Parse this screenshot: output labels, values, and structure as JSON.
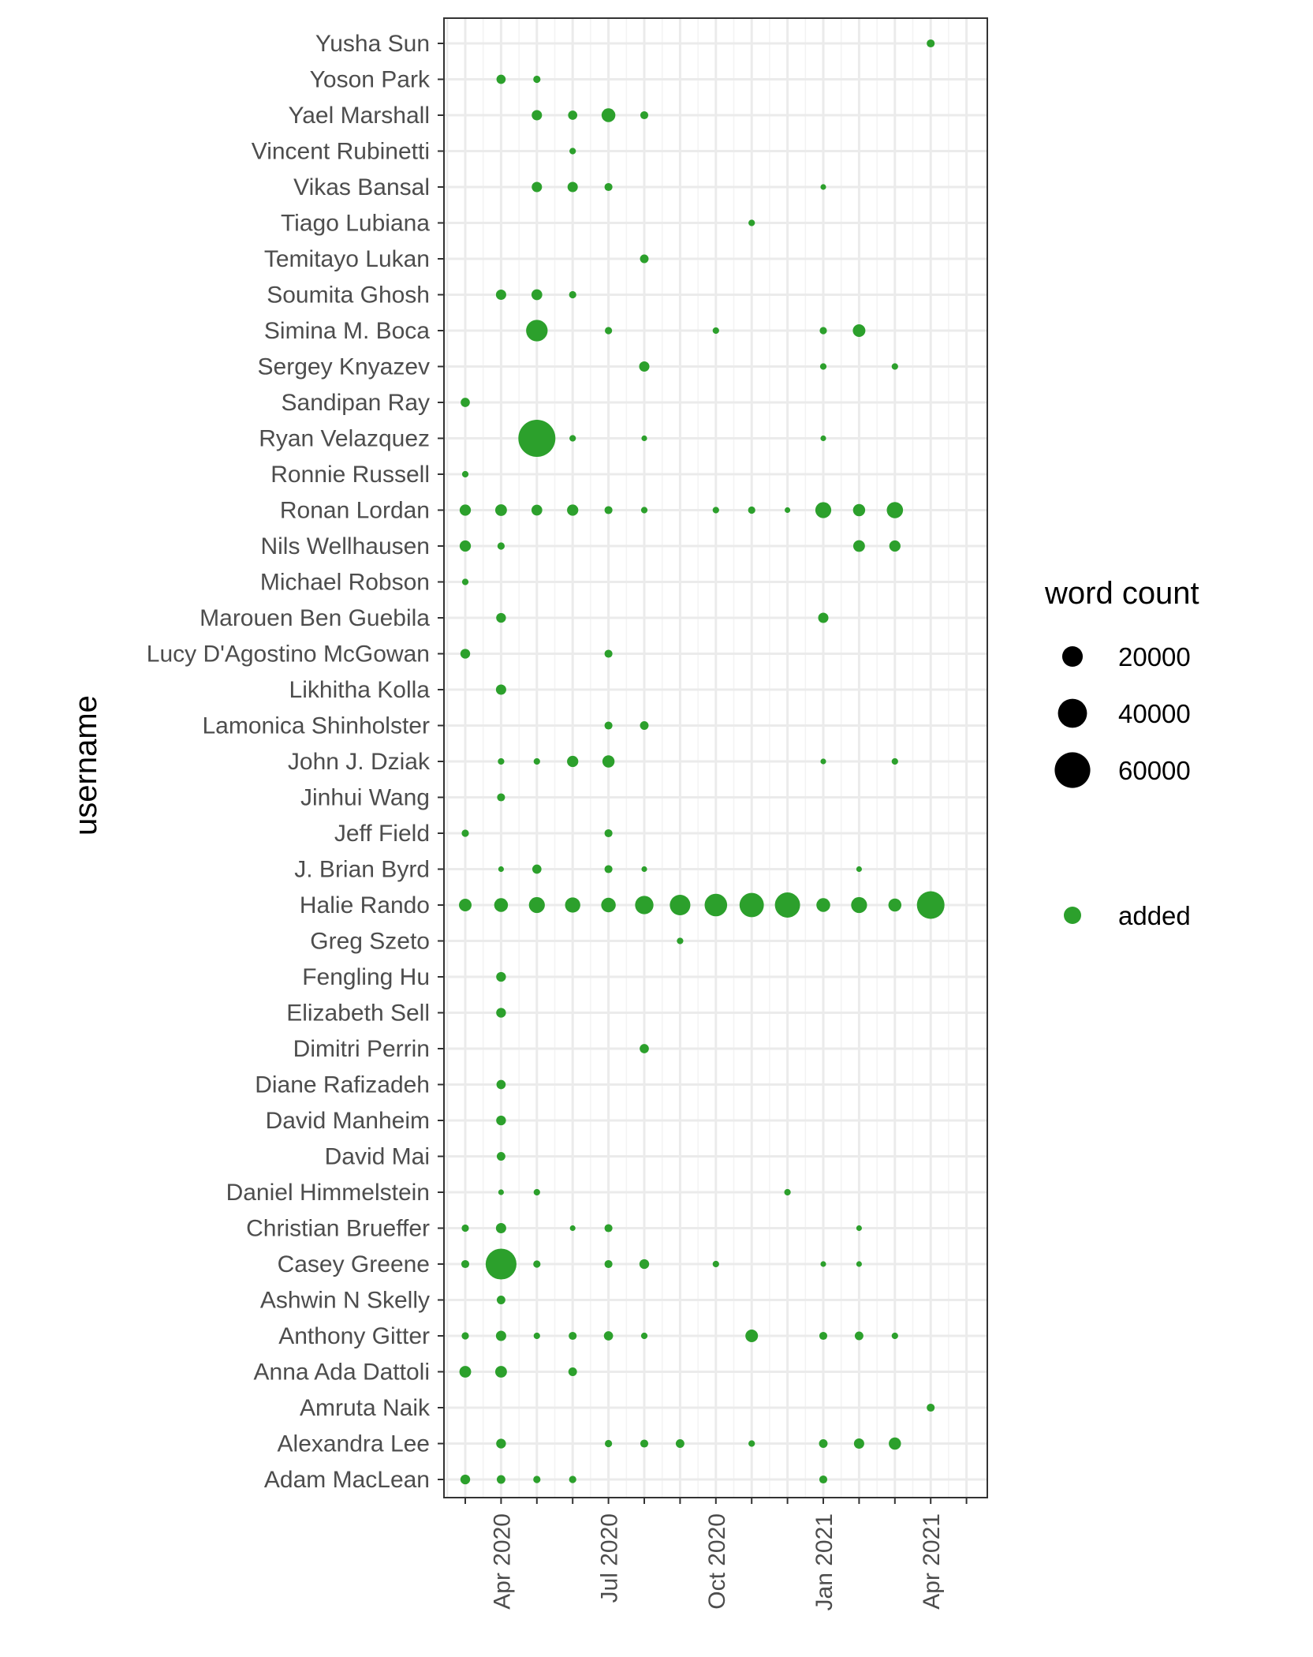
{
  "chart_data": {
    "type": "scatter",
    "xlabel": "",
    "ylabel": "username",
    "x_tick_labels": [
      "Apr 2020",
      "Jul 2020",
      "Oct 2020",
      "Jan 2021",
      "Apr 2021"
    ],
    "x_months": [
      "2020-03",
      "2020-04",
      "2020-05",
      "2020-06",
      "2020-07",
      "2020-08",
      "2020-09",
      "2020-10",
      "2020-11",
      "2020-12",
      "2021-01",
      "2021-02",
      "2021-03",
      "2021-04",
      "2021-05"
    ],
    "categories": [
      "Adam MacLean",
      "Alexandra Lee",
      "Amruta Naik",
      "Anna Ada Dattoli",
      "Anthony Gitter",
      "Ashwin N Skelly",
      "Casey Greene",
      "Christian Brueffer",
      "Daniel Himmelstein",
      "David Mai",
      "David Manheim",
      "Diane Rafizadeh",
      "Dimitri Perrin",
      "Elizabeth Sell",
      "Fengling Hu",
      "Greg Szeto",
      "Halie Rando",
      "J. Brian Byrd",
      "Jeff Field",
      "Jinhui Wang",
      "John J. Dziak",
      "Lamonica Shinholster",
      "Likhitha Kolla",
      "Lucy D'Agostino McGowan",
      "Marouen Ben Guebila",
      "Michael Robson",
      "Nils Wellhausen",
      "Ronan Lordan",
      "Ronnie Russell",
      "Ryan Velazquez",
      "Sandipan Ray",
      "Sergey Knyazev",
      "Simina M. Boca",
      "Soumita Ghosh",
      "Temitayo Lukan",
      "Tiago Lubiana",
      "Vikas Bansal",
      "Vincent Rubinetti",
      "Yael Marshall",
      "Yoson Park",
      "Yusha Sun"
    ],
    "size_legend": {
      "title": "word count",
      "values": [
        20000,
        40000,
        60000
      ],
      "labels": [
        "20000",
        "40000",
        "60000"
      ]
    },
    "color_legend": {
      "labels": [
        "added"
      ],
      "colors": [
        "#2ca02c"
      ]
    },
    "series": [
      {
        "name": "added",
        "color": "#2ca02c",
        "points": [
          {
            "user": "Yusha Sun",
            "month": "2021-04",
            "word_count": 3000
          },
          {
            "user": "Yoson Park",
            "month": "2020-04",
            "word_count": 4000
          },
          {
            "user": "Yoson Park",
            "month": "2020-05",
            "word_count": 2500
          },
          {
            "user": "Yael Marshall",
            "month": "2020-05",
            "word_count": 5000
          },
          {
            "user": "Yael Marshall",
            "month": "2020-06",
            "word_count": 4000
          },
          {
            "user": "Yael Marshall",
            "month": "2020-07",
            "word_count": 9000
          },
          {
            "user": "Yael Marshall",
            "month": "2020-08",
            "word_count": 3000
          },
          {
            "user": "Vincent Rubinetti",
            "month": "2020-06",
            "word_count": 2000
          },
          {
            "user": "Vikas Bansal",
            "month": "2020-05",
            "word_count": 5000
          },
          {
            "user": "Vikas Bansal",
            "month": "2020-06",
            "word_count": 5000
          },
          {
            "user": "Vikas Bansal",
            "month": "2020-07",
            "word_count": 3000
          },
          {
            "user": "Vikas Bansal",
            "month": "2021-01",
            "word_count": 1500
          },
          {
            "user": "Tiago Lubiana",
            "month": "2020-11",
            "word_count": 2000
          },
          {
            "user": "Temitayo Lukan",
            "month": "2020-08",
            "word_count": 3500
          },
          {
            "user": "Soumita Ghosh",
            "month": "2020-04",
            "word_count": 5000
          },
          {
            "user": "Soumita Ghosh",
            "month": "2020-05",
            "word_count": 5500
          },
          {
            "user": "Soumita Ghosh",
            "month": "2020-06",
            "word_count": 2500
          },
          {
            "user": "Simina M. Boca",
            "month": "2020-05",
            "word_count": 22000
          },
          {
            "user": "Simina M. Boca",
            "month": "2020-07",
            "word_count": 2500
          },
          {
            "user": "Simina M. Boca",
            "month": "2020-10",
            "word_count": 2000
          },
          {
            "user": "Simina M. Boca",
            "month": "2021-01",
            "word_count": 2500
          },
          {
            "user": "Simina M. Boca",
            "month": "2021-02",
            "word_count": 7500
          },
          {
            "user": "Sergey Knyazev",
            "month": "2020-08",
            "word_count": 5000
          },
          {
            "user": "Sergey Knyazev",
            "month": "2021-01",
            "word_count": 2000
          },
          {
            "user": "Sergey Knyazev",
            "month": "2021-03",
            "word_count": 2000
          },
          {
            "user": "Sandipan Ray",
            "month": "2020-03",
            "word_count": 4000
          },
          {
            "user": "Ryan Velazquez",
            "month": "2020-05",
            "word_count": 65000
          },
          {
            "user": "Ryan Velazquez",
            "month": "2020-06",
            "word_count": 2000
          },
          {
            "user": "Ryan Velazquez",
            "month": "2020-08",
            "word_count": 1500
          },
          {
            "user": "Ryan Velazquez",
            "month": "2021-01",
            "word_count": 1500
          },
          {
            "user": "Ronnie Russell",
            "month": "2020-03",
            "word_count": 2000
          },
          {
            "user": "Ronan Lordan",
            "month": "2020-03",
            "word_count": 6000
          },
          {
            "user": "Ronan Lordan",
            "month": "2020-04",
            "word_count": 6500
          },
          {
            "user": "Ronan Lordan",
            "month": "2020-05",
            "word_count": 5500
          },
          {
            "user": "Ronan Lordan",
            "month": "2020-06",
            "word_count": 6000
          },
          {
            "user": "Ronan Lordan",
            "month": "2020-07",
            "word_count": 3000
          },
          {
            "user": "Ronan Lordan",
            "month": "2020-08",
            "word_count": 2000
          },
          {
            "user": "Ronan Lordan",
            "month": "2020-10",
            "word_count": 2000
          },
          {
            "user": "Ronan Lordan",
            "month": "2020-11",
            "word_count": 2500
          },
          {
            "user": "Ronan Lordan",
            "month": "2020-12",
            "word_count": 1500
          },
          {
            "user": "Ronan Lordan",
            "month": "2021-01",
            "word_count": 12000
          },
          {
            "user": "Ronan Lordan",
            "month": "2021-02",
            "word_count": 7000
          },
          {
            "user": "Ronan Lordan",
            "month": "2021-03",
            "word_count": 12500
          },
          {
            "user": "Nils Wellhausen",
            "month": "2020-03",
            "word_count": 6000
          },
          {
            "user": "Nils Wellhausen",
            "month": "2020-04",
            "word_count": 2500
          },
          {
            "user": "Nils Wellhausen",
            "month": "2021-02",
            "word_count": 6500
          },
          {
            "user": "Nils Wellhausen",
            "month": "2021-03",
            "word_count": 6000
          },
          {
            "user": "Michael Robson",
            "month": "2020-03",
            "word_count": 2000
          },
          {
            "user": "Marouen Ben Guebila",
            "month": "2020-04",
            "word_count": 4500
          },
          {
            "user": "Marouen Ben Guebila",
            "month": "2021-01",
            "word_count": 5000
          },
          {
            "user": "Lucy D'Agostino McGowan",
            "month": "2020-03",
            "word_count": 4500
          },
          {
            "user": "Lucy D'Agostino McGowan",
            "month": "2020-07",
            "word_count": 3000
          },
          {
            "user": "Likhitha Kolla",
            "month": "2020-04",
            "word_count": 5000
          },
          {
            "user": "Lamonica Shinholster",
            "month": "2020-07",
            "word_count": 3000
          },
          {
            "user": "Lamonica Shinholster",
            "month": "2020-08",
            "word_count": 3500
          },
          {
            "user": "John J. Dziak",
            "month": "2020-04",
            "word_count": 2000
          },
          {
            "user": "John J. Dziak",
            "month": "2020-05",
            "word_count": 2000
          },
          {
            "user": "John J. Dziak",
            "month": "2020-06",
            "word_count": 6000
          },
          {
            "user": "John J. Dziak",
            "month": "2020-07",
            "word_count": 7000
          },
          {
            "user": "John J. Dziak",
            "month": "2021-01",
            "word_count": 1500
          },
          {
            "user": "John J. Dziak",
            "month": "2021-03",
            "word_count": 2000
          },
          {
            "user": "Jinhui Wang",
            "month": "2020-04",
            "word_count": 3000
          },
          {
            "user": "Jeff Field",
            "month": "2020-03",
            "word_count": 2500
          },
          {
            "user": "Jeff Field",
            "month": "2020-07",
            "word_count": 3000
          },
          {
            "user": "J. Brian Byrd",
            "month": "2020-04",
            "word_count": 1500
          },
          {
            "user": "J. Brian Byrd",
            "month": "2020-05",
            "word_count": 4000
          },
          {
            "user": "J. Brian Byrd",
            "month": "2020-07",
            "word_count": 3000
          },
          {
            "user": "J. Brian Byrd",
            "month": "2020-08",
            "word_count": 1500
          },
          {
            "user": "J. Brian Byrd",
            "month": "2021-02",
            "word_count": 1500
          },
          {
            "user": "Halie Rando",
            "month": "2020-03",
            "word_count": 7500
          },
          {
            "user": "Halie Rando",
            "month": "2020-04",
            "word_count": 9000
          },
          {
            "user": "Halie Rando",
            "month": "2020-05",
            "word_count": 12000
          },
          {
            "user": "Halie Rando",
            "month": "2020-06",
            "word_count": 11000
          },
          {
            "user": "Halie Rando",
            "month": "2020-07",
            "word_count": 10000
          },
          {
            "user": "Halie Rando",
            "month": "2020-08",
            "word_count": 16000
          },
          {
            "user": "Halie Rando",
            "month": "2020-09",
            "word_count": 20000
          },
          {
            "user": "Halie Rando",
            "month": "2020-10",
            "word_count": 24000
          },
          {
            "user": "Halie Rando",
            "month": "2020-11",
            "word_count": 28000
          },
          {
            "user": "Halie Rando",
            "month": "2020-12",
            "word_count": 30000
          },
          {
            "user": "Halie Rando",
            "month": "2021-01",
            "word_count": 9000
          },
          {
            "user": "Halie Rando",
            "month": "2021-02",
            "word_count": 12000
          },
          {
            "user": "Halie Rando",
            "month": "2021-03",
            "word_count": 8000
          },
          {
            "user": "Halie Rando",
            "month": "2021-04",
            "word_count": 36000
          },
          {
            "user": "Greg Szeto",
            "month": "2020-09",
            "word_count": 2000
          },
          {
            "user": "Fengling Hu",
            "month": "2020-04",
            "word_count": 4500
          },
          {
            "user": "Elizabeth Sell",
            "month": "2020-04",
            "word_count": 4500
          },
          {
            "user": "Dimitri Perrin",
            "month": "2020-08",
            "word_count": 4000
          },
          {
            "user": "Diane Rafizadeh",
            "month": "2020-04",
            "word_count": 4000
          },
          {
            "user": "David Manheim",
            "month": "2020-04",
            "word_count": 4500
          },
          {
            "user": "David Mai",
            "month": "2020-04",
            "word_count": 3500
          },
          {
            "user": "Daniel Himmelstein",
            "month": "2020-04",
            "word_count": 1500
          },
          {
            "user": "Daniel Himmelstein",
            "month": "2020-05",
            "word_count": 2000
          },
          {
            "user": "Daniel Himmelstein",
            "month": "2020-12",
            "word_count": 2000
          },
          {
            "user": "Christian Brueffer",
            "month": "2020-03",
            "word_count": 2500
          },
          {
            "user": "Christian Brueffer",
            "month": "2020-04",
            "word_count": 5000
          },
          {
            "user": "Christian Brueffer",
            "month": "2020-06",
            "word_count": 1500
          },
          {
            "user": "Christian Brueffer",
            "month": "2020-07",
            "word_count": 3000
          },
          {
            "user": "Christian Brueffer",
            "month": "2021-02",
            "word_count": 1500
          },
          {
            "user": "Casey Greene",
            "month": "2020-03",
            "word_count": 3000
          },
          {
            "user": "Casey Greene",
            "month": "2020-04",
            "word_count": 45000
          },
          {
            "user": "Casey Greene",
            "month": "2020-05",
            "word_count": 2500
          },
          {
            "user": "Casey Greene",
            "month": "2020-07",
            "word_count": 3000
          },
          {
            "user": "Casey Greene",
            "month": "2020-08",
            "word_count": 4500
          },
          {
            "user": "Casey Greene",
            "month": "2020-10",
            "word_count": 2000
          },
          {
            "user": "Casey Greene",
            "month": "2021-01",
            "word_count": 1500
          },
          {
            "user": "Casey Greene",
            "month": "2021-02",
            "word_count": 1500
          },
          {
            "user": "Ashwin N Skelly",
            "month": "2020-04",
            "word_count": 3500
          },
          {
            "user": "Anthony Gitter",
            "month": "2020-03",
            "word_count": 2500
          },
          {
            "user": "Anthony Gitter",
            "month": "2020-04",
            "word_count": 5000
          },
          {
            "user": "Anthony Gitter",
            "month": "2020-05",
            "word_count": 2000
          },
          {
            "user": "Anthony Gitter",
            "month": "2020-06",
            "word_count": 3000
          },
          {
            "user": "Anthony Gitter",
            "month": "2020-07",
            "word_count": 4000
          },
          {
            "user": "Anthony Gitter",
            "month": "2020-08",
            "word_count": 2000
          },
          {
            "user": "Anthony Gitter",
            "month": "2020-11",
            "word_count": 7500
          },
          {
            "user": "Anthony Gitter",
            "month": "2021-01",
            "word_count": 3000
          },
          {
            "user": "Anthony Gitter",
            "month": "2021-02",
            "word_count": 3500
          },
          {
            "user": "Anthony Gitter",
            "month": "2021-03",
            "word_count": 2000
          },
          {
            "user": "Anna Ada Dattoli",
            "month": "2020-03",
            "word_count": 6500
          },
          {
            "user": "Anna Ada Dattoli",
            "month": "2020-04",
            "word_count": 6500
          },
          {
            "user": "Anna Ada Dattoli",
            "month": "2020-06",
            "word_count": 3500
          },
          {
            "user": "Amruta Naik",
            "month": "2021-04",
            "word_count": 3000
          },
          {
            "user": "Alexandra Lee",
            "month": "2020-04",
            "word_count": 4500
          },
          {
            "user": "Alexandra Lee",
            "month": "2020-07",
            "word_count": 2500
          },
          {
            "user": "Alexandra Lee",
            "month": "2020-08",
            "word_count": 3000
          },
          {
            "user": "Alexandra Lee",
            "month": "2020-09",
            "word_count": 3500
          },
          {
            "user": "Alexandra Lee",
            "month": "2020-11",
            "word_count": 2000
          },
          {
            "user": "Alexandra Lee",
            "month": "2021-01",
            "word_count": 3500
          },
          {
            "user": "Alexandra Lee",
            "month": "2021-02",
            "word_count": 5000
          },
          {
            "user": "Alexandra Lee",
            "month": "2021-03",
            "word_count": 7000
          },
          {
            "user": "Adam MacLean",
            "month": "2020-03",
            "word_count": 4500
          },
          {
            "user": "Adam MacLean",
            "month": "2020-04",
            "word_count": 3500
          },
          {
            "user": "Adam MacLean",
            "month": "2020-05",
            "word_count": 2500
          },
          {
            "user": "Adam MacLean",
            "month": "2020-06",
            "word_count": 2500
          },
          {
            "user": "Adam MacLean",
            "month": "2021-01",
            "word_count": 3000
          }
        ]
      }
    ],
    "grid": true,
    "legend_position": "right"
  }
}
